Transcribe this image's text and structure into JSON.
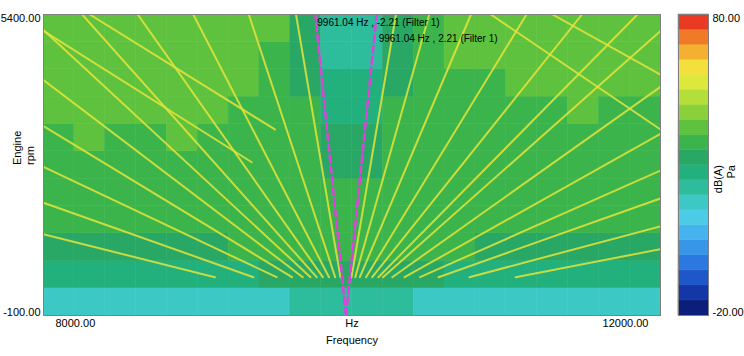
{
  "chart_data": {
    "type": "heatmap",
    "x_label": "Frequency",
    "x_unit": "Hz",
    "y_label": "Engine",
    "y_unit": "rpm",
    "xlim": [
      8000,
      12000
    ],
    "xticks": [
      {
        "value": 8000,
        "label": "8000.00"
      },
      {
        "value": 12000,
        "label": "12000.00"
      }
    ],
    "ylim": [
      -100,
      5400
    ],
    "yticks": [
      {
        "value": 5400,
        "label": "5400.00"
      },
      {
        "value": -100,
        "label": "-100.00"
      }
    ],
    "cells": {
      "x_edges": [
        8000,
        8200,
        8400,
        8600,
        8800,
        9000,
        9200,
        9400,
        9600,
        9800,
        10000,
        10200,
        10400,
        10600,
        10800,
        11000,
        11200,
        11400,
        11600,
        11800,
        12000
      ],
      "y_edges": [
        -100,
        400,
        900,
        1400,
        1900,
        2400,
        2900,
        3400,
        3900,
        4400,
        4900,
        5400
      ],
      "values": [
        [
          16,
          16,
          17,
          16,
          16,
          17,
          17,
          18,
          20,
          22,
          22,
          20,
          18,
          17,
          16,
          16,
          17,
          16,
          16,
          16
        ],
        [
          27,
          28,
          27,
          28,
          28,
          29,
          29,
          31,
          32,
          33,
          33,
          32,
          31,
          29,
          28,
          28,
          28,
          27,
          28,
          27
        ],
        [
          33,
          33,
          34,
          33,
          34,
          34,
          35,
          36,
          37,
          38,
          38,
          37,
          36,
          35,
          34,
          34,
          33,
          33,
          34,
          33
        ],
        [
          36,
          36,
          37,
          36,
          37,
          37,
          38,
          37,
          38,
          37,
          37,
          38,
          37,
          37,
          36,
          36,
          36,
          37,
          36,
          36
        ],
        [
          37,
          38,
          37,
          38,
          37,
          38,
          38,
          38,
          39,
          36,
          36,
          38,
          38,
          37,
          37,
          38,
          37,
          37,
          37,
          37
        ],
        [
          38,
          38,
          39,
          38,
          38,
          39,
          38,
          38,
          38,
          34,
          34,
          38,
          38,
          38,
          37,
          38,
          38,
          37,
          38,
          37
        ],
        [
          39,
          40,
          39,
          39,
          40,
          39,
          38,
          38,
          36,
          31,
          31,
          36,
          38,
          38,
          38,
          38,
          39,
          38,
          38,
          38
        ],
        [
          41,
          41,
          40,
          40,
          41,
          40,
          39,
          38,
          35,
          28,
          28,
          35,
          38,
          39,
          38,
          39,
          39,
          40,
          39,
          39
        ],
        [
          43,
          42,
          42,
          41,
          42,
          41,
          40,
          39,
          34,
          26,
          26,
          34,
          39,
          39,
          39,
          40,
          41,
          40,
          41,
          40
        ],
        [
          44,
          43,
          43,
          42,
          42,
          41,
          40,
          39,
          33,
          24,
          24,
          33,
          39,
          40,
          40,
          41,
          41,
          41,
          42,
          41
        ],
        [
          44,
          44,
          43,
          43,
          42,
          42,
          41,
          40,
          33,
          23,
          23,
          32,
          39,
          40,
          40,
          41,
          42,
          42,
          42,
          42
        ]
      ]
    },
    "colorbar": {
      "range": [
        -20,
        80
      ],
      "ticks": [
        {
          "value": 80,
          "label": "80.00"
        },
        {
          "value": -20,
          "label": "-20.00"
        }
      ],
      "label": "dB(A)",
      "unit": "Pa",
      "colors": [
        "#0b1f7a",
        "#1437a8",
        "#1e57c8",
        "#2a78e0",
        "#3896e8",
        "#46b2ee",
        "#4ccbe6",
        "#3cc8c4",
        "#2dbc9c",
        "#22b07c",
        "#28a864",
        "#3cb44c",
        "#5ec23e",
        "#8ad03a",
        "#b4de3a",
        "#dce83c",
        "#f4e03c",
        "#f4b030",
        "#f07a28",
        "#ea3a24"
      ]
    },
    "order_lines": {
      "color": "#e4e43a",
      "lines": [
        {
          "x": [
            9997,
            10285
          ],
          "y": [
            600,
            5400
          ]
        },
        {
          "x": [
            10021,
            10501
          ],
          "y": [
            600,
            5400
          ]
        },
        {
          "x": [
            10051,
            10771
          ],
          "y": [
            600,
            5400
          ]
        },
        {
          "x": [
            10091,
            11131
          ],
          "y": [
            600,
            5400
          ]
        },
        {
          "x": [
            10131,
            11491
          ],
          "y": [
            600,
            5400
          ]
        },
        {
          "x": [
            10171,
            11851
          ],
          "y": [
            600,
            5400
          ]
        },
        {
          "x": [
            10201,
            12000
          ],
          "y": [
            600,
            5098
          ]
        },
        {
          "x": [
            10261,
            12000
          ],
          "y": [
            600,
            4078
          ]
        },
        {
          "x": [
            10341,
            12000
          ],
          "y": [
            600,
            3219
          ]
        },
        {
          "x": [
            10441,
            12000
          ],
          "y": [
            600,
            2549
          ]
        },
        {
          "x": [
            10561,
            12000
          ],
          "y": [
            600,
            2039
          ]
        },
        {
          "x": [
            10761,
            12000
          ],
          "y": [
            600,
            1529
          ]
        },
        {
          "x": [
            11061,
            12000
          ],
          "y": [
            600,
            1112
          ]
        },
        {
          "x": [
            9925,
            9637
          ],
          "y": [
            600,
            5400
          ]
        },
        {
          "x": [
            9891,
            9331
          ],
          "y": [
            600,
            5400
          ]
        },
        {
          "x": [
            9851,
            8971
          ],
          "y": [
            600,
            5400
          ]
        },
        {
          "x": [
            9811,
            8611
          ],
          "y": [
            600,
            5400
          ]
        },
        {
          "x": [
            9771,
            8251
          ],
          "y": [
            600,
            5400
          ]
        },
        {
          "x": [
            9731,
            8000
          ],
          "y": [
            600,
            5116
          ]
        },
        {
          "x": [
            9681,
            8000
          ],
          "y": [
            600,
            4202
          ]
        },
        {
          "x": [
            9611,
            8000
          ],
          "y": [
            600,
            3362
          ]
        },
        {
          "x": [
            9511,
            8000
          ],
          "y": [
            600,
            2615
          ]
        },
        {
          "x": [
            9361,
            8000
          ],
          "y": [
            600,
            1961
          ]
        },
        {
          "x": [
            9111,
            8000
          ],
          "y": [
            600,
            1384
          ]
        },
        {
          "x": [
            8000,
            9350
          ],
          "y": [
            5100,
            2700
          ]
        },
        {
          "x": [
            8300,
            9500
          ],
          "y": [
            5400,
            3300
          ]
        },
        {
          "x": [
            10900,
            12000
          ],
          "y": [
            5400,
            3300
          ]
        },
        {
          "x": [
            11300,
            12000
          ],
          "y": [
            5400,
            4300
          ]
        }
      ]
    },
    "filters": [
      {
        "label": "9961.04 Hz , -2.21 (Filter 1)",
        "x": [
          9961.04,
          9762.1
        ],
        "y": [
          -100,
          5400
        ],
        "color": "#e040e0"
      },
      {
        "label": "9961.04 Hz , 2.21 (Filter 1)",
        "x": [
          9961.04,
          10159.9
        ],
        "y": [
          -100,
          5400
        ],
        "color": "#e040e0"
      }
    ]
  }
}
